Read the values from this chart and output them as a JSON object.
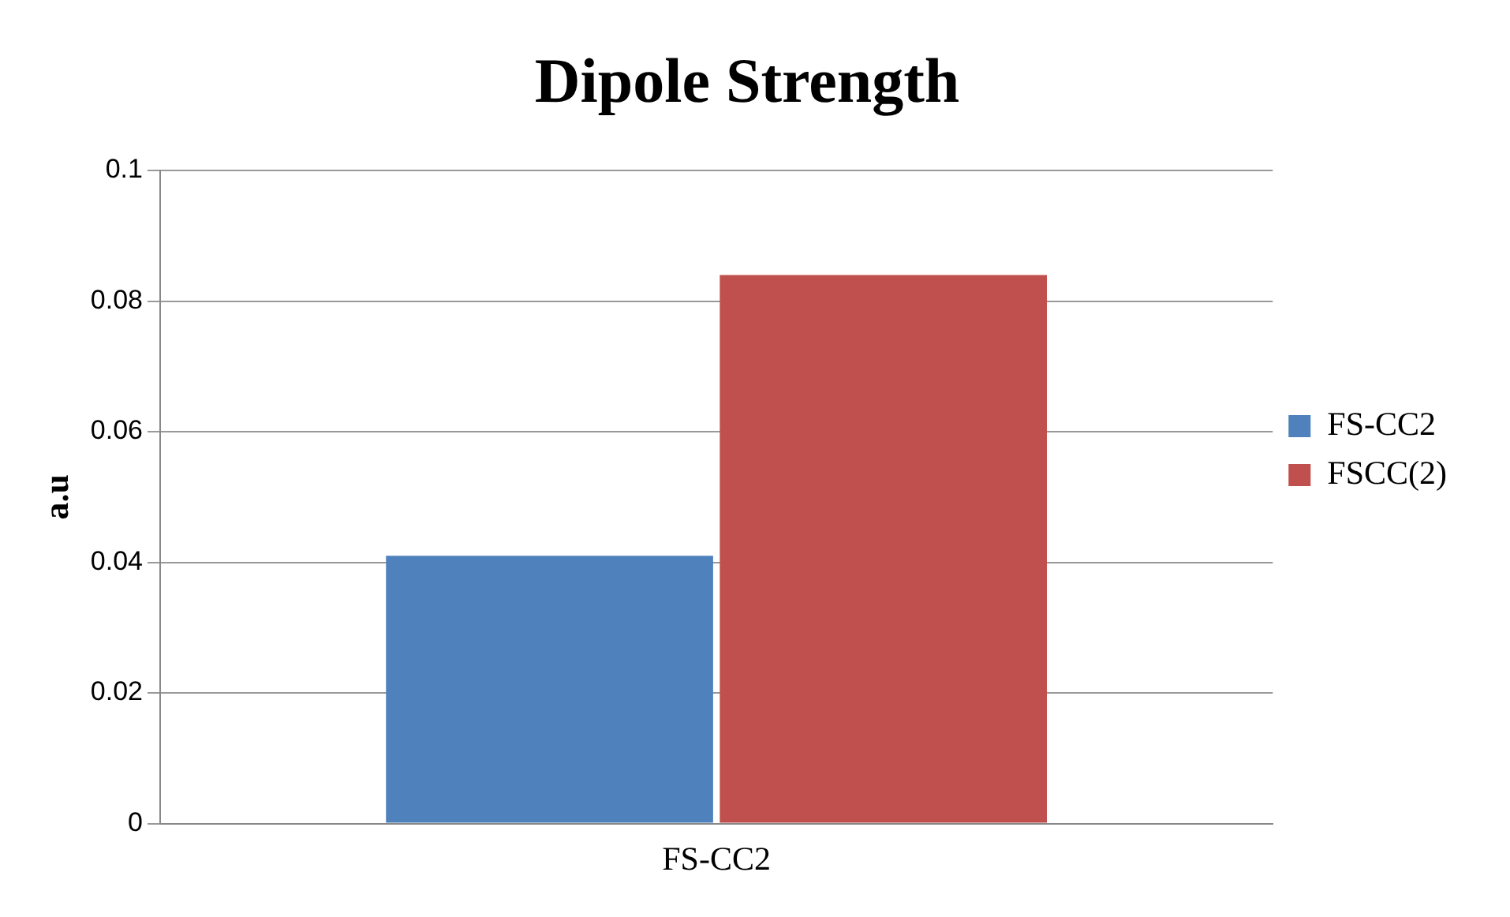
{
  "chart_data": {
    "type": "bar",
    "title": "Dipole Strength",
    "ylabel": "a.u",
    "categories": [
      "FS-CC2"
    ],
    "series": [
      {
        "name": "FS-CC2",
        "color": "#4f81bd",
        "values": [
          0.041
        ]
      },
      {
        "name": "FSCC(2)",
        "color": "#c0504d",
        "values": [
          0.084
        ]
      }
    ],
    "ylim": [
      0,
      0.1
    ],
    "yticks": [
      0,
      0.02,
      0.04,
      0.06,
      0.08,
      0.1
    ],
    "grid": "y",
    "legend": "right"
  }
}
